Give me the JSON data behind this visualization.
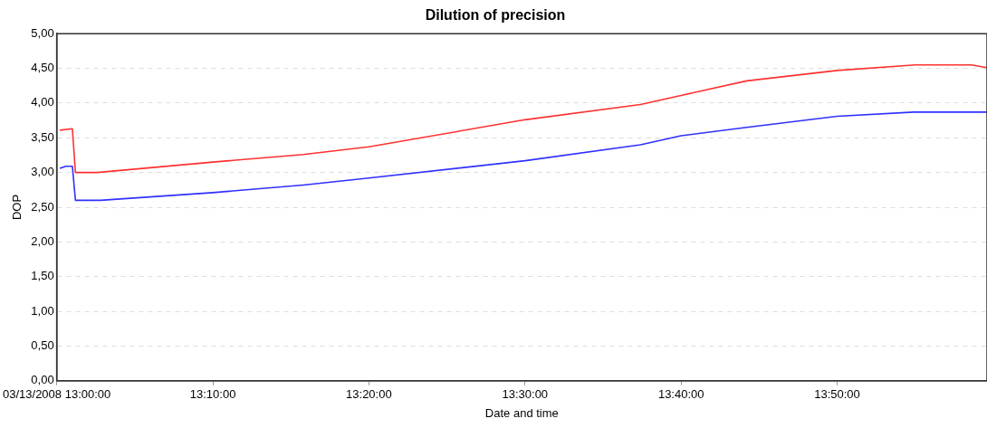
{
  "chart_data": {
    "type": "line",
    "title": "Dilution of precision",
    "xlabel": "Date and time",
    "ylabel": "DOP",
    "xlim": [
      13.0,
      13.9933
    ],
    "xticks": [
      {
        "value": 13.0,
        "label": "03/13/2008 13:00:00"
      },
      {
        "value": 13.1667,
        "label": "13:10:00"
      },
      {
        "value": 13.3333,
        "label": "13:20:00"
      },
      {
        "value": 13.5,
        "label": "13:30:00"
      },
      {
        "value": 13.6667,
        "label": "13:40:00"
      },
      {
        "value": 13.8333,
        "label": "13:50:00"
      }
    ],
    "ylim": [
      0,
      5
    ],
    "yticks": [
      {
        "value": 0,
        "label": "0,00"
      },
      {
        "value": 0.5,
        "label": "0,50"
      },
      {
        "value": 1,
        "label": "1,00"
      },
      {
        "value": 1.5,
        "label": "1,50"
      },
      {
        "value": 2,
        "label": "2,00"
      },
      {
        "value": 2.5,
        "label": "2,50"
      },
      {
        "value": 3,
        "label": "3,00"
      },
      {
        "value": 3.5,
        "label": "3,50"
      },
      {
        "value": 4,
        "label": "4,00"
      },
      {
        "value": 4.5,
        "label": "4,50"
      },
      {
        "value": 5,
        "label": "5,00"
      }
    ],
    "grid": "y",
    "legend": false,
    "marker": "none",
    "line_style": "solid",
    "series": [
      {
        "color": "#ff3030",
        "x": [
          13.0033,
          13.0167,
          13.02,
          13.0433,
          13.1667,
          13.2633,
          13.3333,
          13.5,
          13.6233,
          13.6667,
          13.7367,
          13.8333,
          13.9167,
          13.9767,
          13.9933
        ],
        "values": [
          3.61,
          3.63,
          3.0,
          3.0,
          3.15,
          3.26,
          3.37,
          3.76,
          3.98,
          4.11,
          4.32,
          4.47,
          4.55,
          4.55,
          4.51
        ]
      },
      {
        "color": "#3030ff",
        "x": [
          13.0033,
          13.01,
          13.0167,
          13.02,
          13.0467,
          13.1667,
          13.2633,
          13.3333,
          13.5,
          13.6233,
          13.6667,
          13.7367,
          13.8333,
          13.915,
          13.9933
        ],
        "values": [
          3.06,
          3.09,
          3.09,
          2.6,
          2.6,
          2.71,
          2.82,
          2.92,
          3.17,
          3.4,
          3.53,
          3.65,
          3.81,
          3.87,
          3.87
        ]
      }
    ]
  }
}
